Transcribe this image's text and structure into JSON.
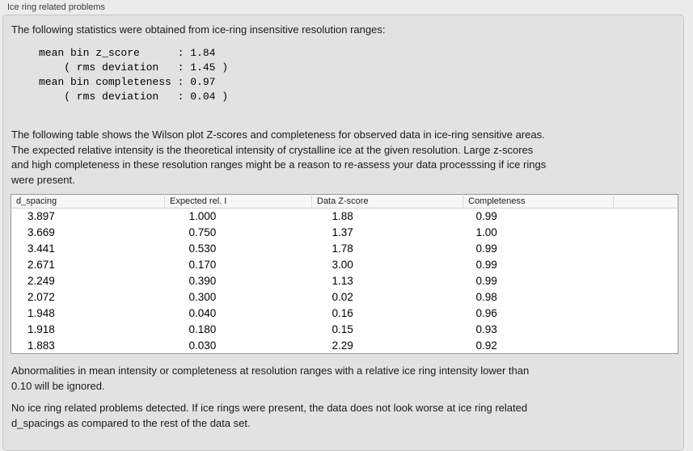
{
  "panel": {
    "title": "Ice ring related problems"
  },
  "stats": {
    "intro": "The following statistics were obtained from ice-ring insensitive resolution ranges:",
    "mono_lines": [
      "mean bin z_score      : 1.84",
      "    ( rms deviation   : 1.45 )",
      "mean bin completeness : 0.97",
      "    ( rms deviation   : 0.04 )"
    ]
  },
  "description": {
    "lines": [
      "The following table shows the Wilson plot Z-scores and completeness for observed data in ice-ring sensitive areas.",
      "The expected relative intensity is the theoretical intensity of crystalline ice at the given resolution. Large z-scores",
      "and high completeness in these resolution ranges might be a reason to re-assess your data processsing if ice rings",
      "were present."
    ]
  },
  "table": {
    "headers": [
      "d_spacing",
      "Expected rel. I",
      "Data Z-score",
      "Completeness"
    ],
    "rows": [
      [
        "3.897",
        "1.000",
        "1.88",
        "0.99"
      ],
      [
        "3.669",
        "0.750",
        "1.37",
        "1.00"
      ],
      [
        "3.441",
        "0.530",
        "1.78",
        "0.99"
      ],
      [
        "2.671",
        "0.170",
        "3.00",
        "0.99"
      ],
      [
        "2.249",
        "0.390",
        "1.13",
        "0.99"
      ],
      [
        "2.072",
        "0.300",
        "0.02",
        "0.98"
      ],
      [
        "1.948",
        "0.040",
        "0.16",
        "0.96"
      ],
      [
        "1.918",
        "0.180",
        "0.15",
        "0.93"
      ],
      [
        "1.883",
        "0.030",
        "2.29",
        "0.92"
      ]
    ]
  },
  "notes": {
    "abnormalities_lines": [
      "Abnormalities in mean intensity or completeness at resolution ranges with a relative ice ring intensity lower than",
      "0.10 will be ignored."
    ],
    "conclusion_lines": [
      "No ice ring related problems detected. If ice rings were present, the data does not look worse at ice ring related",
      "d_spacings as compared to the rest of the data set."
    ]
  },
  "colors": {
    "page_bg": "#ececec",
    "box_bg": "#e2e2e2",
    "box_border": "#c6c6c6",
    "table_border": "#999999",
    "table_header_bg": "#f7f7f7",
    "text": "#1b1b1b"
  }
}
